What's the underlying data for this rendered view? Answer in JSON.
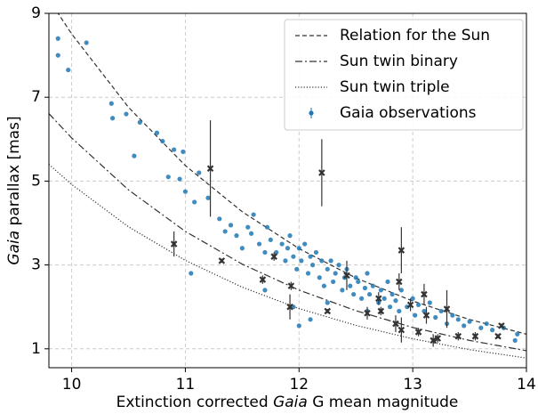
{
  "chart_data": {
    "type": "scatter",
    "xlabel": [
      "Extinction corrected ",
      "Gaia",
      " G mean magnitude"
    ],
    "ylabel": [
      "Gaia",
      " parallax [mas]"
    ],
    "xlim": [
      9.8,
      14
    ],
    "ylim": [
      0.55,
      9
    ],
    "xticks": [
      10,
      11,
      12,
      13,
      14
    ],
    "yticks": [
      1,
      3,
      5,
      7,
      9
    ],
    "grid": true,
    "legend": "upper right",
    "series": [
      {
        "name": "Relation for the Sun",
        "kind": "line",
        "style": "dashed",
        "color": "#333333",
        "x": [
          9.8,
          10,
          10.5,
          11,
          11.5,
          12,
          12.5,
          13,
          13.5,
          14
        ],
        "values": [
          9.33,
          8.51,
          6.76,
          5.37,
          4.27,
          3.39,
          2.69,
          2.14,
          1.7,
          1.35
        ]
      },
      {
        "name": "Sun twin binary",
        "kind": "line",
        "style": "dashdot",
        "color": "#333333",
        "x": [
          9.8,
          10,
          10.5,
          11,
          11.5,
          12,
          12.5,
          13,
          13.5,
          14
        ],
        "values": [
          6.61,
          6.03,
          4.79,
          3.8,
          3.02,
          2.4,
          1.91,
          1.51,
          1.2,
          0.955
        ]
      },
      {
        "name": "Sun twin triple",
        "kind": "line",
        "style": "dotted",
        "color": "#333333",
        "x": [
          9.8,
          10,
          10.5,
          11,
          11.5,
          12,
          12.5,
          13,
          13.5,
          14
        ],
        "values": [
          5.4,
          4.92,
          3.91,
          3.11,
          2.47,
          1.96,
          1.56,
          1.24,
          0.98,
          0.78
        ]
      },
      {
        "name": "Gaia observations",
        "kind": "points",
        "color": "#1f77b4",
        "x": [
          9.88,
          9.88,
          9.97,
          10.13,
          10.35,
          10.36,
          10.48,
          10.55,
          10.6,
          10.75,
          10.8,
          10.85,
          10.9,
          10.95,
          10.98,
          11.0,
          11.05,
          11.08,
          11.12,
          11.2,
          11.3,
          11.35,
          11.4,
          11.45,
          11.5,
          11.55,
          11.58,
          11.6,
          11.65,
          11.7,
          11.72,
          11.75,
          11.8,
          11.85,
          11.88,
          11.9,
          11.92,
          11.95,
          11.98,
          12.0,
          12.02,
          12.05,
          12.08,
          12.1,
          12.12,
          12.15,
          12.18,
          12.2,
          12.22,
          12.25,
          12.28,
          12.3,
          12.32,
          12.35,
          12.38,
          12.4,
          12.42,
          12.45,
          12.48,
          12.5,
          12.52,
          12.55,
          12.58,
          12.6,
          12.62,
          12.65,
          12.7,
          12.72,
          12.75,
          12.78,
          12.8,
          12.82,
          12.85,
          12.88,
          12.9,
          12.95,
          13.0,
          13.02,
          13.05,
          13.1,
          13.15,
          13.2,
          13.25,
          13.3,
          13.35,
          13.4,
          13.45,
          13.5,
          13.6,
          13.65,
          13.7,
          13.8,
          13.9,
          13.92,
          11.95,
          12.0,
          12.1,
          12.25,
          11.7,
          12.6
        ],
        "values": [
          8.4,
          8.0,
          7.65,
          8.3,
          6.85,
          6.5,
          6.6,
          5.6,
          6.4,
          6.15,
          5.95,
          5.1,
          5.75,
          5.05,
          5.7,
          4.75,
          2.8,
          4.5,
          5.2,
          4.6,
          4.1,
          3.8,
          3.95,
          3.7,
          3.4,
          3.9,
          3.75,
          4.2,
          3.5,
          3.3,
          3.9,
          3.6,
          3.3,
          3.5,
          3.1,
          3.4,
          3.7,
          3.2,
          2.9,
          3.4,
          3.1,
          3.5,
          2.8,
          3.2,
          3.0,
          3.3,
          2.7,
          3.1,
          2.5,
          2.9,
          3.1,
          2.6,
          2.8,
          3.0,
          2.4,
          2.7,
          2.9,
          2.5,
          2.3,
          2.7,
          2.6,
          2.2,
          2.45,
          2.8,
          2.3,
          2.5,
          2.1,
          2.4,
          2.2,
          2.6,
          2.0,
          2.3,
          2.15,
          1.9,
          2.4,
          2.0,
          2.2,
          1.8,
          2.05,
          1.9,
          2.1,
          1.75,
          1.9,
          1.6,
          1.8,
          1.7,
          1.55,
          1.65,
          1.5,
          1.6,
          1.45,
          1.5,
          1.2,
          1.35,
          2.0,
          1.55,
          1.7,
          2.1,
          2.4,
          1.9
        ]
      },
      {
        "kind": "crosses",
        "color": "#333333",
        "x": [
          10.9,
          11.22,
          11.32,
          11.68,
          11.78,
          11.92,
          11.93,
          12.2,
          12.25,
          12.42,
          12.6,
          12.7,
          12.72,
          12.85,
          12.88,
          12.9,
          12.9,
          12.98,
          13.05,
          13.1,
          13.12,
          13.18,
          13.22,
          13.3,
          13.4,
          13.55,
          13.75,
          13.78
        ],
        "values": [
          3.5,
          5.3,
          3.1,
          2.65,
          3.2,
          2.0,
          2.5,
          5.2,
          1.9,
          2.75,
          1.85,
          2.2,
          1.9,
          1.6,
          2.6,
          3.35,
          1.45,
          2.05,
          1.4,
          2.3,
          1.8,
          1.2,
          1.25,
          1.95,
          1.3,
          1.3,
          1.3,
          1.55
        ],
        "errors": [
          0.3,
          1.15,
          0.05,
          0.1,
          0.1,
          0.3,
          0.1,
          0.8,
          0.05,
          0.35,
          0.15,
          0.15,
          0.1,
          0.2,
          0.2,
          0.55,
          0.3,
          0.15,
          0.1,
          0.25,
          0.2,
          0.15,
          0.1,
          0.45,
          0.1,
          0.1,
          0.05,
          0.05
        ]
      }
    ]
  }
}
